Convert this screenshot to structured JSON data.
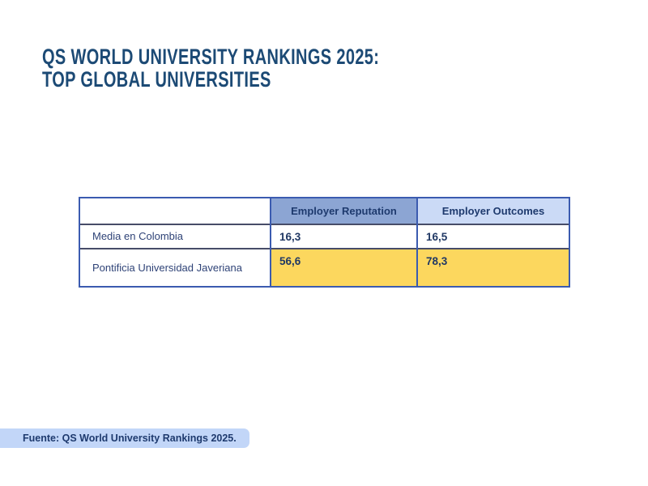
{
  "title": {
    "line1": "QS WORLD UNIVERSITY RANKINGS 2025:",
    "line2": "TOP GLOBAL UNIVERSITIES"
  },
  "table": {
    "columns": [
      "",
      "Employer Reputation",
      "Employer Outcomes"
    ],
    "rows": [
      {
        "label": "Media en Colombia",
        "values": [
          "16,3",
          "16,5"
        ],
        "highlight": false
      },
      {
        "label": "Pontificia Universidad Javeriana",
        "values": [
          "56,6",
          "78,3"
        ],
        "highlight": true
      }
    ]
  },
  "footer": {
    "source_label": "Fuente: QS World University Rankings 2025."
  },
  "colors": {
    "title_navy": "#1C4A75",
    "table_border_blue": "#3B5BB0",
    "row_separator_dark": "#474C68",
    "header_reputation_bg": "#8CA5D3",
    "header_outcomes_bg": "#CBDAF6",
    "highlight_yellow": "#FCD75E",
    "badge_bg": "#C2D6F8",
    "text_navy": "#1E3A6E"
  },
  "chart_data": {
    "type": "table",
    "title": "QS World University Rankings 2025: Top Global Universities",
    "columns": [
      "",
      "Employer Reputation",
      "Employer Outcomes"
    ],
    "rows": [
      [
        "Media en Colombia",
        16.3,
        16.5
      ],
      [
        "Pontificia Universidad Javeriana",
        56.6,
        78.3
      ]
    ],
    "highlighted_row": "Pontificia Universidad Javeriana",
    "source": "Fuente: QS World University Rankings 2025."
  }
}
